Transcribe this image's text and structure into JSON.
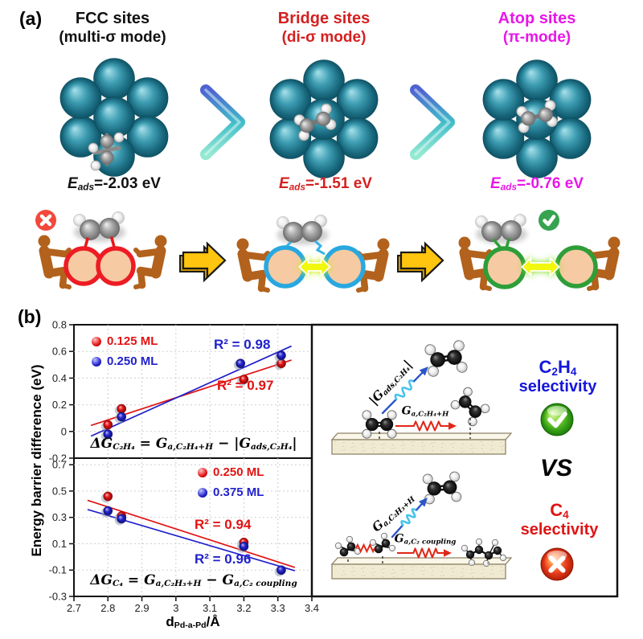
{
  "panel_a": {
    "label": "(a)",
    "columns": [
      {
        "title": "FCC sites",
        "subtitle": "(multi-σ mode)",
        "color": "#111111",
        "eads_segments": [
          {
            "t": "E",
            "i": 1
          },
          {
            "t": "ads",
            "s": 1,
            "i": 1
          },
          {
            "t": "=-2.03 eV"
          }
        ]
      },
      {
        "title": "Bridge sites",
        "subtitle": "(di-σ mode)",
        "color": "#d42020",
        "eads_segments": [
          {
            "t": "E",
            "i": 1
          },
          {
            "t": "ads",
            "s": 1,
            "i": 1
          },
          {
            "t": "=-1.51 eV"
          }
        ]
      },
      {
        "title": "Atop sites",
        "subtitle": "(π-mode)",
        "color": "#e816e8",
        "eads_segments": [
          {
            "t": "E",
            "i": 1
          },
          {
            "t": "ads",
            "s": 1,
            "i": 1
          },
          {
            "t": "=-0.76 eV"
          }
        ]
      }
    ]
  },
  "panel_b": {
    "label": "(b)",
    "y_axis_title": "Energy barrier difference (eV)",
    "x_axis_title_segments": [
      {
        "t": "d"
      },
      {
        "t": "Pd-a-Pd",
        "s": 1
      },
      {
        "t": "/Å"
      }
    ],
    "vs": "VS",
    "c2h4_selectivity": {
      "line1_segments": [
        {
          "t": "C"
        },
        {
          "t": "2",
          "s": 1
        },
        {
          "t": "H"
        },
        {
          "t": "4",
          "s": 1
        }
      ],
      "line2": "selectivity",
      "color": "#1515dd"
    },
    "c4_selectivity": {
      "line1_segments": [
        {
          "t": "C"
        },
        {
          "t": "4",
          "s": 1
        }
      ],
      "line2": "selectivity",
      "color": "#e01414"
    },
    "labels": {
      "g_ads_segments": [
        {
          "t": "|"
        },
        {
          "t": "G"
        },
        {
          "t": "ads,C₂H₄",
          "s": 1
        },
        {
          "t": "|"
        }
      ],
      "g_a_c2h4_segments": [
        {
          "t": "G"
        },
        {
          "t": "a,C₂H₄+H",
          "s": 1
        }
      ],
      "g_a_c2h3_segments": [
        {
          "t": "G"
        },
        {
          "t": "a,C₂H₃+H",
          "s": 1
        }
      ],
      "g_c2_coupling_segments": [
        {
          "t": "G"
        },
        {
          "t": "a,C₂ coupling",
          "s": 1
        }
      ]
    }
  },
  "chart_data": [
    {
      "type": "scatter",
      "title": "",
      "ylabel": "Energy barrier difference (eV)",
      "x_range": [
        2.7,
        3.4
      ],
      "y_range": [
        -0.2,
        0.8
      ],
      "grid": true,
      "x_tick_labels_visible": false,
      "x_ticks": [
        {
          "v": 2.7,
          "l": "2.7"
        },
        {
          "v": 2.8,
          "l": "2.8"
        },
        {
          "v": 2.9,
          "l": "2.9"
        },
        {
          "v": 3,
          "l": "3"
        },
        {
          "v": 3.1,
          "l": "3.1"
        },
        {
          "v": 3.2,
          "l": "3.2"
        },
        {
          "v": 3.3,
          "l": "3.3"
        },
        {
          "v": 3.4,
          "l": "3.4"
        }
      ],
      "y_ticks": [
        {
          "v": 0.8,
          "l": "0.8"
        },
        {
          "v": 0.6,
          "l": "0.6"
        },
        {
          "v": 0.4,
          "l": "0.4"
        },
        {
          "v": 0.2,
          "l": "0.2"
        },
        {
          "v": 0,
          "l": "0"
        },
        {
          "v": -0.2,
          "l": "-0.2"
        }
      ],
      "series": [
        {
          "name": "0.125 ML",
          "color": "#e21212",
          "points": [
            [
              2.8,
              0.05
            ],
            [
              2.84,
              0.17
            ],
            [
              3.2,
              0.39
            ],
            [
              3.31,
              0.51
            ]
          ],
          "trend": [
            [
              2.75,
              0.045
            ],
            [
              3.34,
              0.535
            ]
          ],
          "r2": "R² = 0.97"
        },
        {
          "name": "0.250 ML",
          "color": "#2121cc",
          "points": [
            [
              2.8,
              -0.02
            ],
            [
              2.84,
              0.11
            ],
            [
              3.19,
              0.51
            ],
            [
              3.31,
              0.57
            ]
          ],
          "trend": [
            [
              2.75,
              -0.035
            ],
            [
              3.34,
              0.64
            ]
          ],
          "r2": "R² = 0.98"
        }
      ],
      "legend_position": "top-left",
      "formula_segments": [
        {
          "t": "ΔG"
        },
        {
          "t": "C₂H₄",
          "s": 1
        },
        {
          "t": " = "
        },
        {
          "t": "G"
        },
        {
          "t": "a,C₂H₄+H",
          "s": 1
        },
        {
          "t": " − |"
        },
        {
          "t": "G"
        },
        {
          "t": "ads,C₂H₄",
          "s": 1
        },
        {
          "t": "|"
        }
      ]
    },
    {
      "type": "scatter",
      "title": "",
      "xlabel": "d_Pd-a-Pd/Å",
      "x_range": [
        2.7,
        3.4
      ],
      "y_range": [
        -0.3,
        0.75
      ],
      "grid": true,
      "x_tick_labels_visible": true,
      "x_ticks": [
        {
          "v": 2.7,
          "l": "2.7"
        },
        {
          "v": 2.8,
          "l": "2.8"
        },
        {
          "v": 2.9,
          "l": "2.9"
        },
        {
          "v": 3,
          "l": "3"
        },
        {
          "v": 3.1,
          "l": "3.1"
        },
        {
          "v": 3.2,
          "l": "3.2"
        },
        {
          "v": 3.3,
          "l": "3.3"
        },
        {
          "v": 3.4,
          "l": "3.4"
        }
      ],
      "y_ticks": [
        {
          "v": 0.7,
          "l": "0.7"
        },
        {
          "v": 0.5,
          "l": "0.5"
        },
        {
          "v": 0.3,
          "l": "0.3"
        },
        {
          "v": 0.1,
          "l": "0.1"
        },
        {
          "v": -0.1,
          "l": "-0.1"
        },
        {
          "v": -0.3,
          "l": "-0.3"
        }
      ],
      "series": [
        {
          "name": "0.250 ML",
          "color": "#e21212",
          "points": [
            [
              2.8,
              0.46
            ],
            [
              2.84,
              0.31
            ],
            [
              3.2,
              0.11
            ]
          ],
          "trend": [
            [
              2.74,
              0.43
            ],
            [
              3.35,
              -0.08
            ]
          ],
          "r2": "R² = 0.94"
        },
        {
          "name": "0.375 ML",
          "color": "#2121cc",
          "points": [
            [
              2.8,
              0.35
            ],
            [
              2.84,
              0.29
            ],
            [
              3.2,
              0.08
            ],
            [
              3.31,
              -0.1
            ]
          ],
          "trend": [
            [
              2.74,
              0.36
            ],
            [
              3.35,
              -0.105
            ]
          ],
          "r2": "R² = 0.96"
        }
      ],
      "legend_position": "top-right",
      "formula_segments": [
        {
          "t": "ΔG"
        },
        {
          "t": "C₄",
          "s": 1
        },
        {
          "t": " = "
        },
        {
          "t": "G"
        },
        {
          "t": "a,C₂H₃+H",
          "s": 1
        },
        {
          "t": " − "
        },
        {
          "t": "G"
        },
        {
          "t": "a,C₂ coupling",
          "s": 1
        }
      ]
    }
  ]
}
